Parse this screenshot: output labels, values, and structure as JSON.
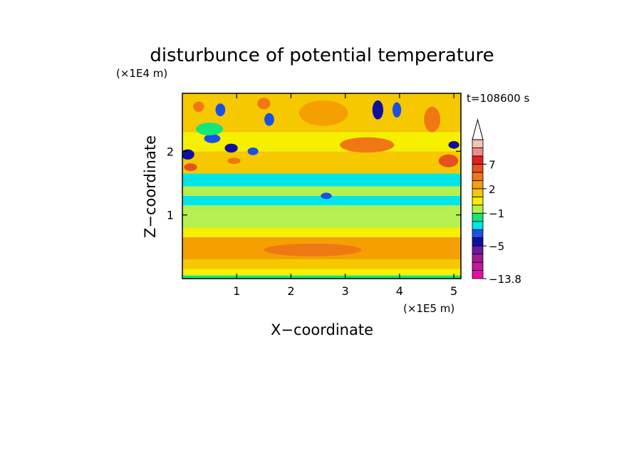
{
  "chart_data": {
    "type": "heatmap",
    "title": "disturbunce of potential temperature",
    "xlabel": "X−coordinate",
    "ylabel": "Z−coordinate",
    "x_unit": "(×1E5 m)",
    "y_unit": "(×1E4 m)",
    "time_label": "t=108600 s",
    "xlim": [
      0,
      5.13
    ],
    "ylim": [
      0,
      2.91
    ],
    "x_ticks": [
      1,
      2,
      3,
      4,
      5
    ],
    "y_ticks": [
      1,
      2
    ],
    "colorbar": {
      "levels": [
        {
          "color": "#e60fa4"
        },
        {
          "color": "#c8149e"
        },
        {
          "color": "#a01a96"
        },
        {
          "color": "#6a1aa0"
        },
        {
          "color": "#1010a0"
        },
        {
          "color": "#1a50e6"
        },
        {
          "color": "#00e6e6"
        },
        {
          "color": "#14e678"
        },
        {
          "color": "#b4f050"
        },
        {
          "color": "#f5f000"
        },
        {
          "color": "#f5c800"
        },
        {
          "color": "#f5a000"
        },
        {
          "color": "#f07814"
        },
        {
          "color": "#e6501e"
        },
        {
          "color": "#e61e1e"
        },
        {
          "color": "#f08c8c"
        },
        {
          "color": "#f5c3b4"
        }
      ],
      "labels": [
        {
          "text": "7",
          "level": 14
        },
        {
          "text": "2",
          "level": 11
        },
        {
          "text": "−1",
          "level": 8
        },
        {
          "text": "−5",
          "level": 4
        },
        {
          "text": "−13.8",
          "level": 0
        }
      ],
      "extend": "max"
    },
    "field_bands": [
      {
        "z": [
          0.0,
          0.05
        ],
        "level": 7
      },
      {
        "z": [
          0.05,
          0.15
        ],
        "level": 9
      },
      {
        "z": [
          0.15,
          0.3
        ],
        "level": 10
      },
      {
        "z": [
          0.3,
          0.65
        ],
        "level": 11
      },
      {
        "z": [
          0.65,
          0.8
        ],
        "level": 9
      },
      {
        "z": [
          0.8,
          1.0
        ],
        "level": 8
      },
      {
        "z": [
          1.0,
          1.15
        ],
        "level": 8
      },
      {
        "z": [
          1.15,
          1.3
        ],
        "level": 6
      },
      {
        "z": [
          1.3,
          1.45
        ],
        "level": 8
      },
      {
        "z": [
          1.45,
          1.65
        ],
        "level": 6
      },
      {
        "z": [
          1.65,
          2.0
        ],
        "level": 10
      },
      {
        "z": [
          2.0,
          2.3
        ],
        "level": 9
      },
      {
        "z": [
          2.3,
          2.91
        ],
        "level": 10
      }
    ],
    "field_features": [
      {
        "x": 0.15,
        "z": 1.75,
        "rx": 0.12,
        "rz": 0.06,
        "level": 13
      },
      {
        "x": 0.1,
        "z": 1.95,
        "rx": 0.12,
        "rz": 0.08,
        "level": 4
      },
      {
        "x": 0.55,
        "z": 2.2,
        "rx": 0.15,
        "rz": 0.07,
        "level": 5
      },
      {
        "x": 0.9,
        "z": 2.05,
        "rx": 0.12,
        "rz": 0.07,
        "level": 4
      },
      {
        "x": 0.95,
        "z": 1.85,
        "rx": 0.12,
        "rz": 0.05,
        "level": 12
      },
      {
        "x": 1.3,
        "z": 2.0,
        "rx": 0.1,
        "rz": 0.06,
        "level": 5
      },
      {
        "x": 0.7,
        "z": 2.65,
        "rx": 0.09,
        "rz": 0.1,
        "level": 5
      },
      {
        "x": 0.3,
        "z": 2.7,
        "rx": 0.1,
        "rz": 0.08,
        "level": 12
      },
      {
        "x": 1.6,
        "z": 2.5,
        "rx": 0.09,
        "rz": 0.1,
        "level": 5
      },
      {
        "x": 1.5,
        "z": 2.75,
        "rx": 0.12,
        "rz": 0.09,
        "level": 12
      },
      {
        "x": 2.6,
        "z": 2.6,
        "rx": 0.45,
        "rz": 0.2,
        "level": 11
      },
      {
        "x": 3.6,
        "z": 2.65,
        "rx": 0.1,
        "rz": 0.15,
        "level": 4
      },
      {
        "x": 3.95,
        "z": 2.65,
        "rx": 0.08,
        "rz": 0.12,
        "level": 5
      },
      {
        "x": 4.6,
        "z": 2.5,
        "rx": 0.15,
        "rz": 0.2,
        "level": 12
      },
      {
        "x": 4.9,
        "z": 1.85,
        "rx": 0.18,
        "rz": 0.1,
        "level": 13
      },
      {
        "x": 5.0,
        "z": 2.1,
        "rx": 0.1,
        "rz": 0.06,
        "level": 4
      },
      {
        "x": 2.65,
        "z": 1.3,
        "rx": 0.1,
        "rz": 0.05,
        "level": 5
      },
      {
        "x": 3.4,
        "z": 2.1,
        "rx": 0.5,
        "rz": 0.12,
        "level": 12
      },
      {
        "x": 2.4,
        "z": 0.45,
        "rx": 0.9,
        "rz": 0.1,
        "level": 12
      },
      {
        "x": 0.5,
        "z": 2.35,
        "rx": 0.25,
        "rz": 0.1,
        "level": 7
      }
    ]
  }
}
